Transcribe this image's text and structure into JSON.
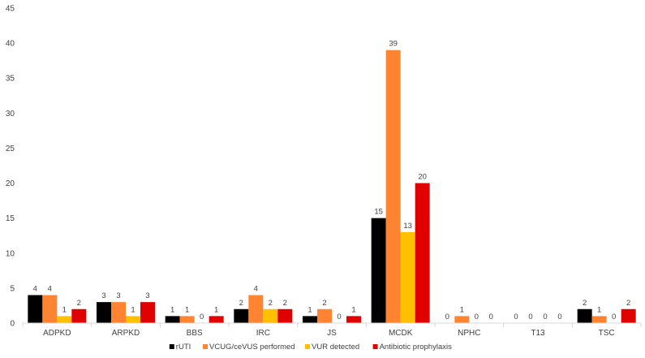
{
  "chart_data": {
    "type": "bar",
    "title": "",
    "xlabel": "",
    "ylabel": "",
    "ylim": [
      0,
      45
    ],
    "y_ticks": [
      0,
      5,
      10,
      15,
      20,
      25,
      30,
      35,
      40,
      45
    ],
    "grid": false,
    "legend_position": "bottom",
    "categories": [
      "ADPKD",
      "ARPKD",
      "BBS",
      "IRC",
      "JS",
      "MCDK",
      "NPHC",
      "T13",
      "TSC"
    ],
    "series": [
      {
        "name": "rUTI",
        "color": "#000000",
        "values": [
          4,
          3,
          1,
          2,
          1,
          15,
          0,
          0,
          2
        ]
      },
      {
        "name": "VCUG/ceVUS performed",
        "color": "#FF8432",
        "values": [
          4,
          3,
          1,
          4,
          2,
          39,
          1,
          0,
          1
        ]
      },
      {
        "name": "VUR detected",
        "color": "#FFC000",
        "values": [
          1,
          1,
          0,
          2,
          0,
          13,
          0,
          0,
          0
        ]
      },
      {
        "name": "Antibiotic prophylaxis",
        "color": "#E00000",
        "values": [
          2,
          3,
          1,
          2,
          1,
          20,
          0,
          0,
          2
        ]
      }
    ]
  }
}
